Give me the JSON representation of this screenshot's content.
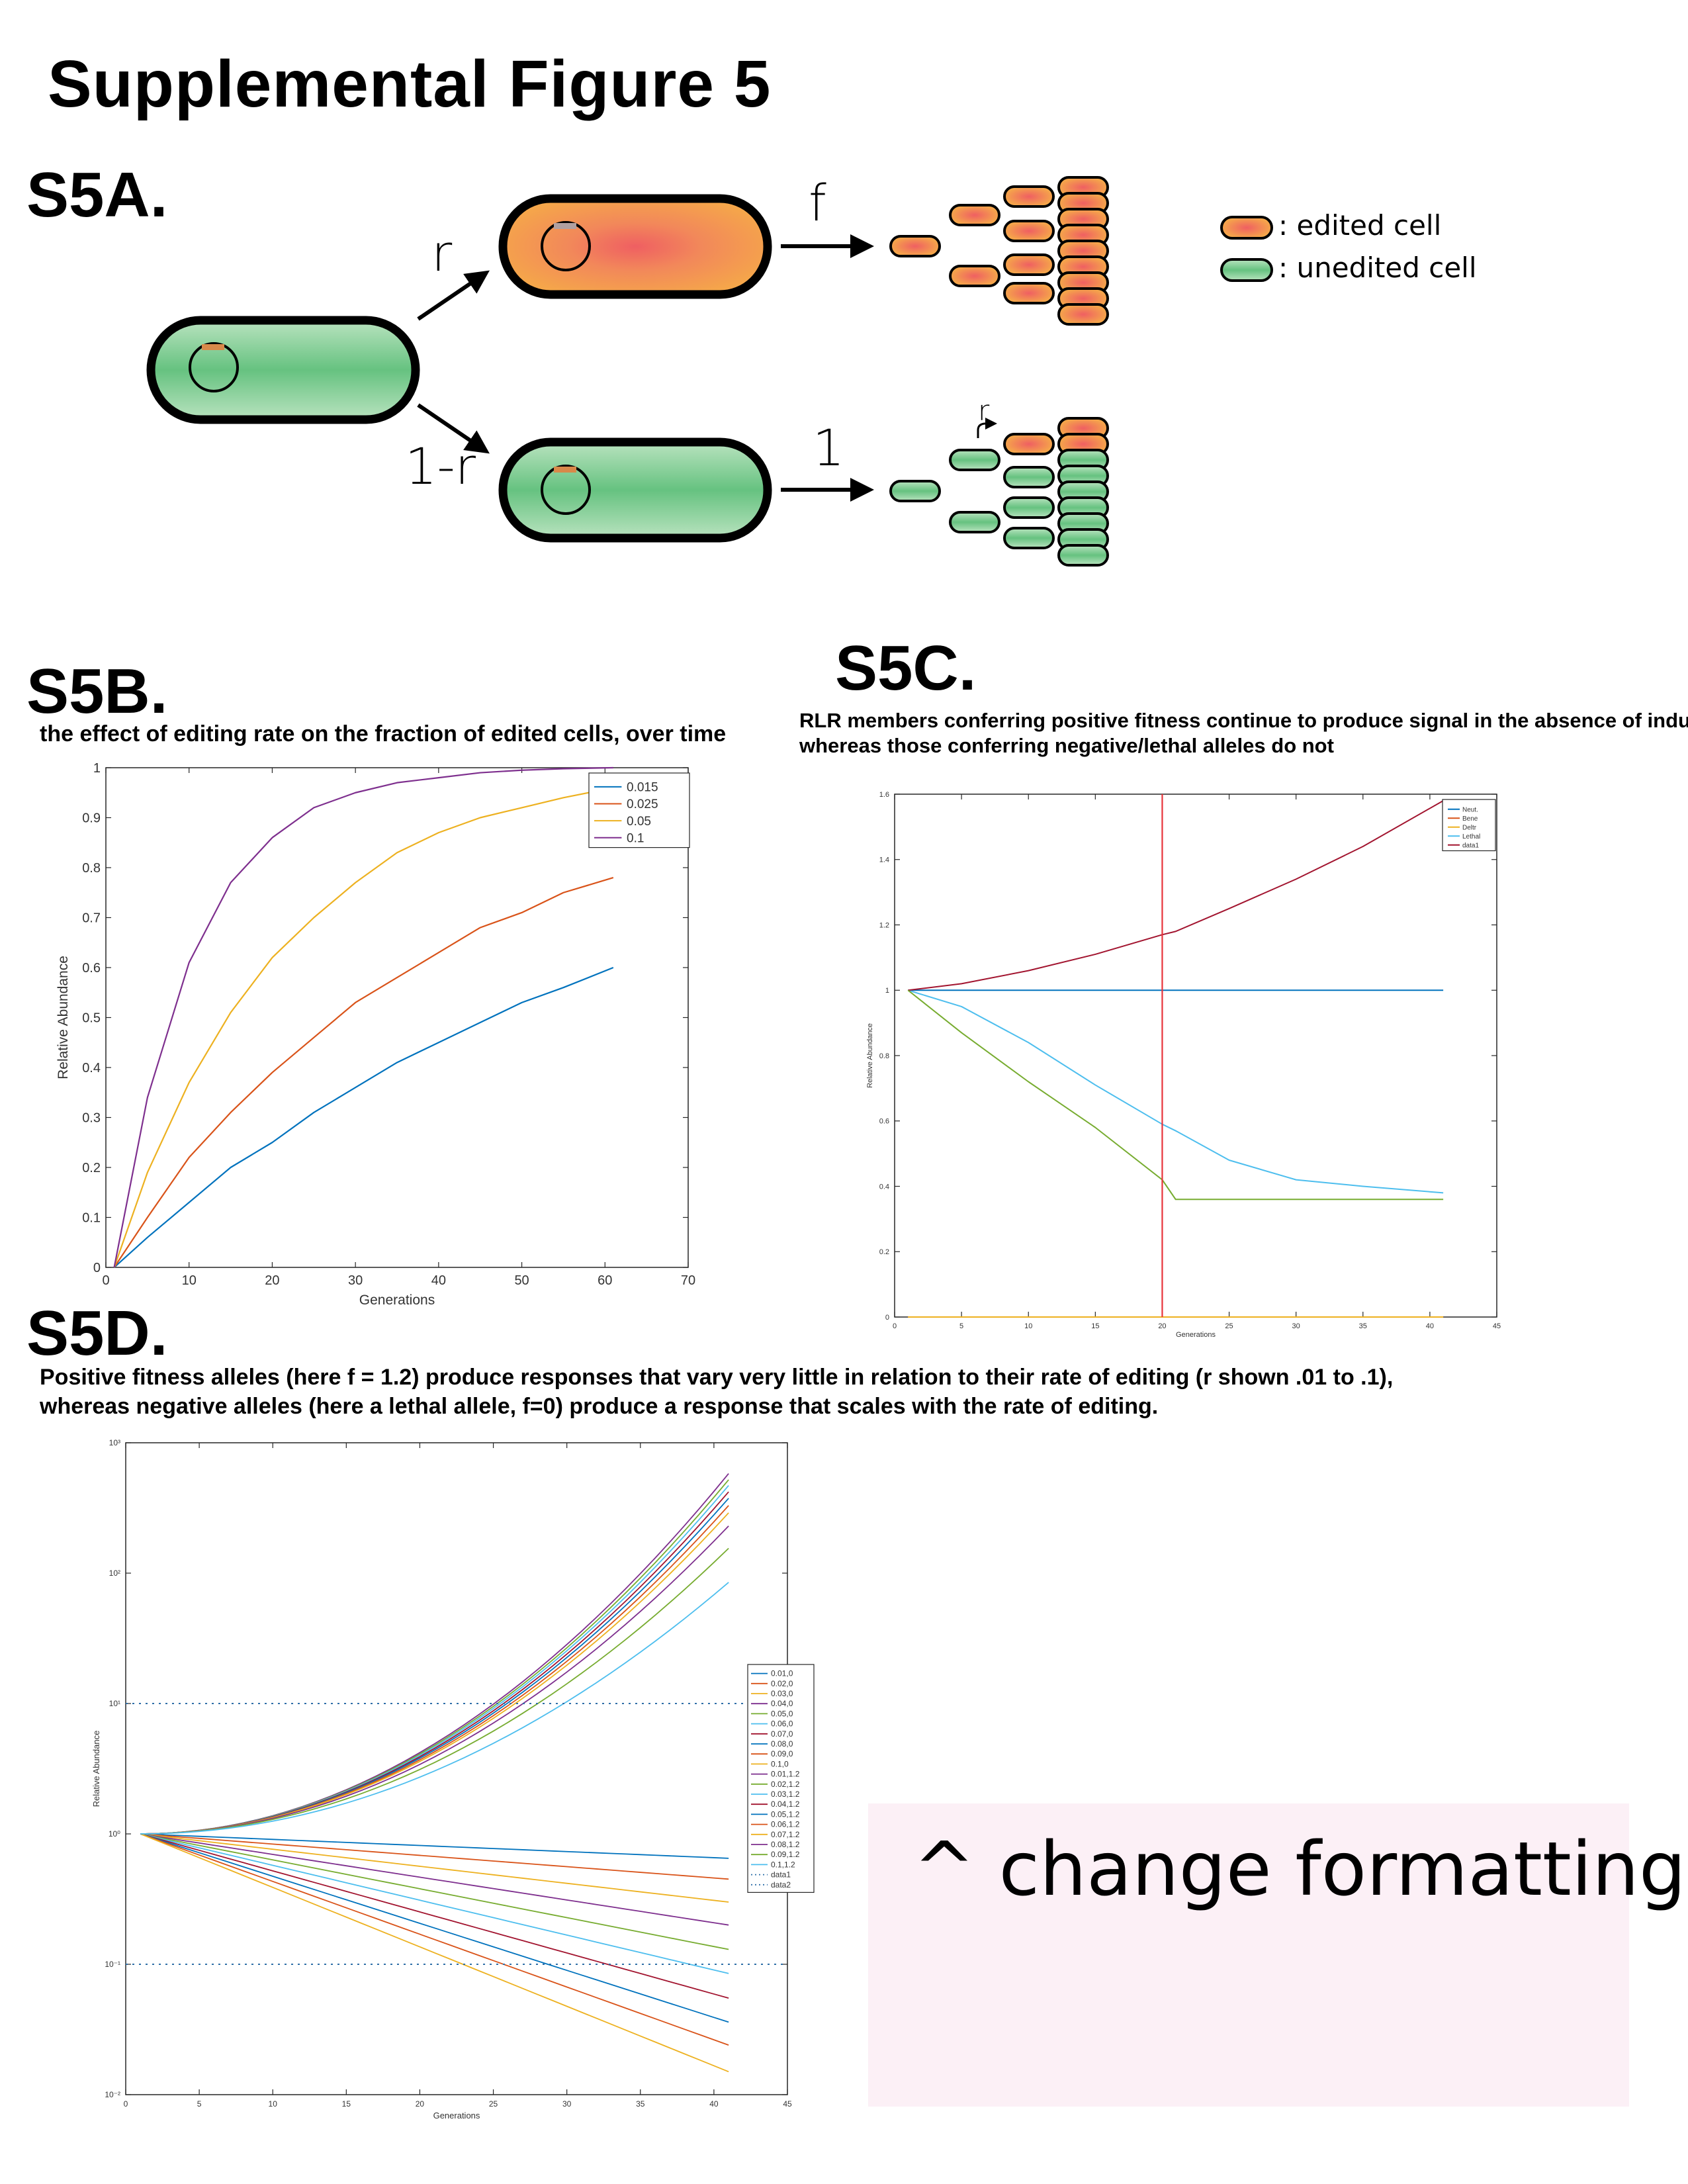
{
  "figure_title": "Supplemental Figure 5",
  "panels": {
    "a": {
      "label": "S5A.",
      "rate_r": "r",
      "rate_one_minus_r": "1-r",
      "rate_f": "f",
      "rate_one": "1",
      "rate_r_small": "r",
      "legend_edited": ": edited cell",
      "legend_unedited": ": unedited cell",
      "colors": {
        "edited": "#f5a64a",
        "edited_core": "#ef5f62",
        "unedited": "#9fd8a8",
        "unedited_core": "#64c27e",
        "plasmid_mark": "#d8894a"
      }
    },
    "b": {
      "label": "S5B.",
      "caption": "the effect of editing rate on the fraction of edited cells, over time"
    },
    "c": {
      "label": "S5C.",
      "caption_line1": "RLR members conferring positive fitness continue to produce signal in the absence of induction,",
      "caption_line2": " whereas those conferring negative/lethal alleles do not"
    },
    "d": {
      "label": "S5D.",
      "caption_line1": "Positive fitness alleles (here f = 1.2) produce responses that vary very little in relation to their rate of editing (r shown .01 to .1),",
      "caption_line2": "whereas negative alleles (here a lethal allele, f=0) produce a response that scales with the rate of editing."
    }
  },
  "note": "^ change formatting",
  "chart_data": [
    {
      "id": "b",
      "type": "line",
      "xlabel": "Generations",
      "ylabel": "Relative Abundance",
      "xlim": [
        0,
        70
      ],
      "ylim": [
        0,
        1
      ],
      "xticks": [
        0,
        10,
        20,
        30,
        40,
        50,
        60,
        70
      ],
      "yticks": [
        0,
        0.1,
        0.2,
        0.3,
        0.4,
        0.5,
        0.6,
        0.7,
        0.8,
        0.9,
        1
      ],
      "x": [
        1,
        5,
        10,
        15,
        20,
        25,
        30,
        35,
        40,
        45,
        50,
        55,
        61
      ],
      "legend_position": "top-right",
      "series": [
        {
          "name": "0.015",
          "color": "#0072bd",
          "values": [
            0.0,
            0.06,
            0.13,
            0.2,
            0.25,
            0.31,
            0.36,
            0.41,
            0.45,
            0.49,
            0.53,
            0.56,
            0.6
          ]
        },
        {
          "name": "0.025",
          "color": "#d95319",
          "values": [
            0.0,
            0.1,
            0.22,
            0.31,
            0.39,
            0.46,
            0.53,
            0.58,
            0.63,
            0.68,
            0.71,
            0.75,
            0.78
          ]
        },
        {
          "name": "0.05",
          "color": "#edb120",
          "values": [
            0.0,
            0.19,
            0.37,
            0.51,
            0.62,
            0.7,
            0.77,
            0.83,
            0.87,
            0.9,
            0.92,
            0.94,
            0.96
          ]
        },
        {
          "name": "0.1",
          "color": "#7e2f8e",
          "values": [
            0.0,
            0.34,
            0.61,
            0.77,
            0.86,
            0.92,
            0.95,
            0.97,
            0.98,
            0.99,
            0.995,
            0.998,
            1.0
          ]
        }
      ]
    },
    {
      "id": "c",
      "type": "line",
      "xlabel": "Generations",
      "ylabel": "Relative Abundance",
      "xlim": [
        0,
        45
      ],
      "ylim": [
        0,
        1.6
      ],
      "xticks": [
        0,
        5,
        10,
        15,
        20,
        25,
        30,
        35,
        40,
        45
      ],
      "yticks": [
        0,
        0.2,
        0.4,
        0.6,
        0.8,
        1,
        1.2,
        1.4,
        1.6
      ],
      "x": [
        1,
        5,
        10,
        15,
        20,
        21,
        25,
        30,
        35,
        41
      ],
      "legend_position": "top-right",
      "vline": {
        "x": 20,
        "color": "#e8333a"
      },
      "series": [
        {
          "name": "Neut.",
          "color": "#0072bd",
          "values": [
            1,
            1,
            1,
            1,
            1,
            1,
            1,
            1,
            1,
            1
          ]
        },
        {
          "name": "Bene",
          "color": "#d95319",
          "values": [
            0,
            0,
            0,
            0,
            0,
            0,
            0,
            0,
            0,
            0
          ]
        },
        {
          "name": "Deltr",
          "color": "#edb120",
          "values": [
            0,
            0,
            0,
            0,
            0,
            0,
            0,
            0,
            0,
            0
          ]
        },
        {
          "name": "Lethal",
          "color": "#4dbeee",
          "values": [
            1,
            0.95,
            0.84,
            0.71,
            0.59,
            0.57,
            0.48,
            0.42,
            0.4,
            0.38
          ]
        },
        {
          "name": "data1",
          "color": "#a2142f",
          "values": [
            1,
            1.02,
            1.06,
            1.11,
            1.17,
            1.18,
            1.25,
            1.34,
            1.44,
            1.58
          ]
        },
        {
          "name": "",
          "color": "#77ac30",
          "values": [
            1,
            0.87,
            0.72,
            0.58,
            0.42,
            0.36,
            0.36,
            0.36,
            0.36,
            0.36
          ]
        }
      ]
    },
    {
      "id": "d",
      "type": "line",
      "scale_y": "log",
      "xlabel": "Generations",
      "ylabel": "Relative Abundance",
      "xlim": [
        0,
        45
      ],
      "ylim": [
        0.01,
        1000
      ],
      "xticks": [
        0,
        5,
        10,
        15,
        20,
        25,
        30,
        35,
        40,
        45
      ],
      "yticks": [
        0.01,
        0.1,
        1,
        10,
        100,
        1000
      ],
      "ytick_labels": [
        "10⁻²",
        "10⁻¹",
        "10⁰",
        "10¹",
        "10²",
        "10³"
      ],
      "x": [
        1,
        41
      ],
      "legend_position": "right",
      "hlines": [
        10,
        0.1
      ],
      "growth_exponent": 2,
      "legend": [
        "0.01,0",
        "0.02,0",
        "0.03,0",
        "0.04,0",
        "0.05,0",
        "0.06,0",
        "0.07,0",
        "0.08,0",
        "0.09,0",
        "0.1,0",
        "0.01,1.2",
        "0.02,1.2",
        "0.03,1.2",
        "0.04,1.2",
        "0.05,1.2",
        "0.06,1.2",
        "0.07,1.2",
        "0.08,1.2",
        "0.09,1.2",
        "0.1,1.2",
        "data1",
        "data2"
      ],
      "colors": [
        "#0072bd",
        "#d95319",
        "#edb120",
        "#7e2f8e",
        "#77ac30",
        "#4dbeee",
        "#a2142f"
      ],
      "lethal_end_values": [
        0.65,
        0.45,
        0.3,
        0.2,
        0.13,
        0.085,
        0.055,
        0.036,
        0.024,
        0.015
      ],
      "positive_end_values": [
        580,
        520,
        470,
        420,
        375,
        330,
        290,
        230,
        155,
        85
      ]
    }
  ]
}
